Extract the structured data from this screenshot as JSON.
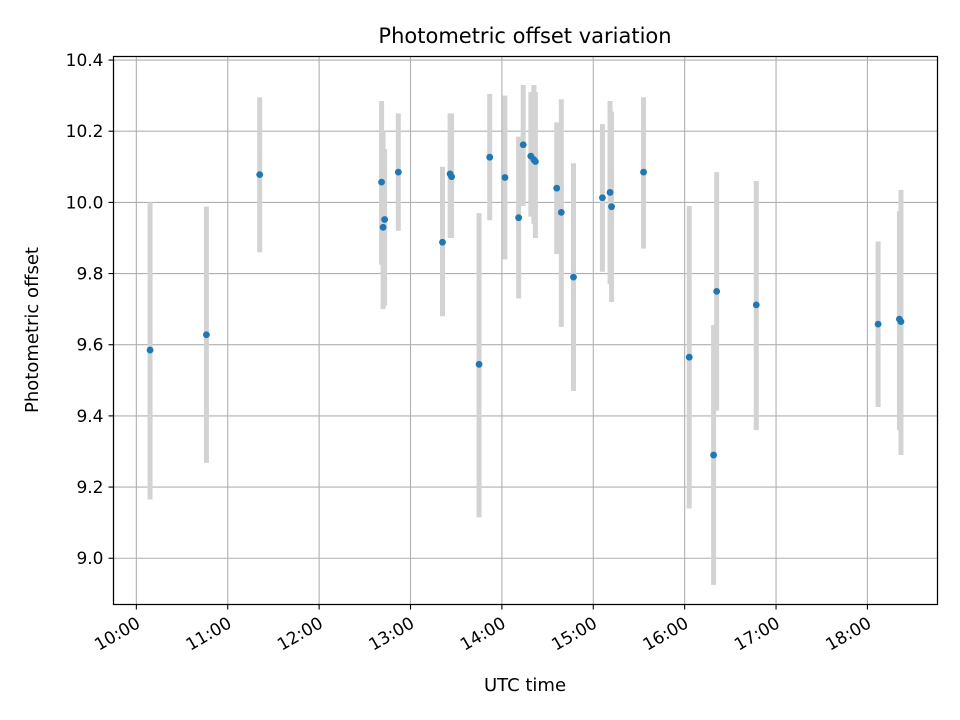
{
  "chart_data": {
    "type": "scatter",
    "title": "Photometric offset variation",
    "xlabel": "UTC time",
    "ylabel": "Photometric offset",
    "x_ticks": [
      "10:00",
      "11:00",
      "12:00",
      "13:00",
      "14:00",
      "15:00",
      "16:00",
      "17:00",
      "18:00"
    ],
    "y_ticks": [
      "9.0",
      "9.2",
      "9.4",
      "9.6",
      "9.8",
      "10.0",
      "10.2",
      "10.4"
    ],
    "xlim": [
      "09:45",
      "18:46"
    ],
    "ylim": [
      8.87,
      10.41
    ],
    "grid": true,
    "error_bar_color": "#d3d3d3",
    "point_color": "#1f77b4",
    "points": [
      {
        "time": "10:09",
        "y": 9.585,
        "lo": 9.165,
        "hi": 10.0
      },
      {
        "time": "10:46",
        "y": 9.628,
        "lo": 9.268,
        "hi": 9.988
      },
      {
        "time": "11:21",
        "y": 10.078,
        "lo": 9.86,
        "hi": 10.295
      },
      {
        "time": "12:41",
        "y": 10.057,
        "lo": 9.825,
        "hi": 10.285
      },
      {
        "time": "12:42",
        "y": 9.93,
        "lo": 9.7,
        "hi": 10.2
      },
      {
        "time": "12:43",
        "y": 9.952,
        "lo": 9.71,
        "hi": 10.15
      },
      {
        "time": "12:52",
        "y": 10.085,
        "lo": 9.92,
        "hi": 10.25
      },
      {
        "time": "13:21",
        "y": 9.888,
        "lo": 9.68,
        "hi": 10.1
      },
      {
        "time": "13:26",
        "y": 10.08,
        "lo": 9.9,
        "hi": 10.25
      },
      {
        "time": "13:27",
        "y": 10.072,
        "lo": 9.9,
        "hi": 10.25
      },
      {
        "time": "13:45",
        "y": 9.545,
        "lo": 9.115,
        "hi": 9.97
      },
      {
        "time": "13:52",
        "y": 10.127,
        "lo": 9.95,
        "hi": 10.305
      },
      {
        "time": "14:02",
        "y": 10.07,
        "lo": 9.84,
        "hi": 10.3
      },
      {
        "time": "14:11",
        "y": 9.957,
        "lo": 9.73,
        "hi": 10.185
      },
      {
        "time": "14:14",
        "y": 10.162,
        "lo": 9.99,
        "hi": 10.33
      },
      {
        "time": "14:19",
        "y": 10.13,
        "lo": 9.96,
        "hi": 10.31
      },
      {
        "time": "14:21",
        "y": 10.12,
        "lo": 9.94,
        "hi": 10.33
      },
      {
        "time": "14:22",
        "y": 10.115,
        "lo": 9.9,
        "hi": 10.31
      },
      {
        "time": "14:36",
        "y": 10.04,
        "lo": 9.855,
        "hi": 10.225
      },
      {
        "time": "14:39",
        "y": 9.972,
        "lo": 9.65,
        "hi": 10.29
      },
      {
        "time": "14:47",
        "y": 9.79,
        "lo": 9.47,
        "hi": 10.11
      },
      {
        "time": "15:06",
        "y": 10.013,
        "lo": 9.805,
        "hi": 10.22
      },
      {
        "time": "15:11",
        "y": 10.028,
        "lo": 9.77,
        "hi": 10.285
      },
      {
        "time": "15:12",
        "y": 9.988,
        "lo": 9.72,
        "hi": 10.255
      },
      {
        "time": "15:33",
        "y": 10.085,
        "lo": 9.87,
        "hi": 10.295
      },
      {
        "time": "16:03",
        "y": 9.565,
        "lo": 9.14,
        "hi": 9.99
      },
      {
        "time": "16:19",
        "y": 9.29,
        "lo": 8.925,
        "hi": 9.655
      },
      {
        "time": "16:21",
        "y": 9.75,
        "lo": 9.415,
        "hi": 10.085
      },
      {
        "time": "16:47",
        "y": 9.712,
        "lo": 9.36,
        "hi": 10.06
      },
      {
        "time": "18:07",
        "y": 9.658,
        "lo": 9.425,
        "hi": 9.89
      },
      {
        "time": "18:21",
        "y": 9.672,
        "lo": 9.36,
        "hi": 9.975
      },
      {
        "time": "18:22",
        "y": 9.665,
        "lo": 9.29,
        "hi": 10.035
      }
    ]
  }
}
